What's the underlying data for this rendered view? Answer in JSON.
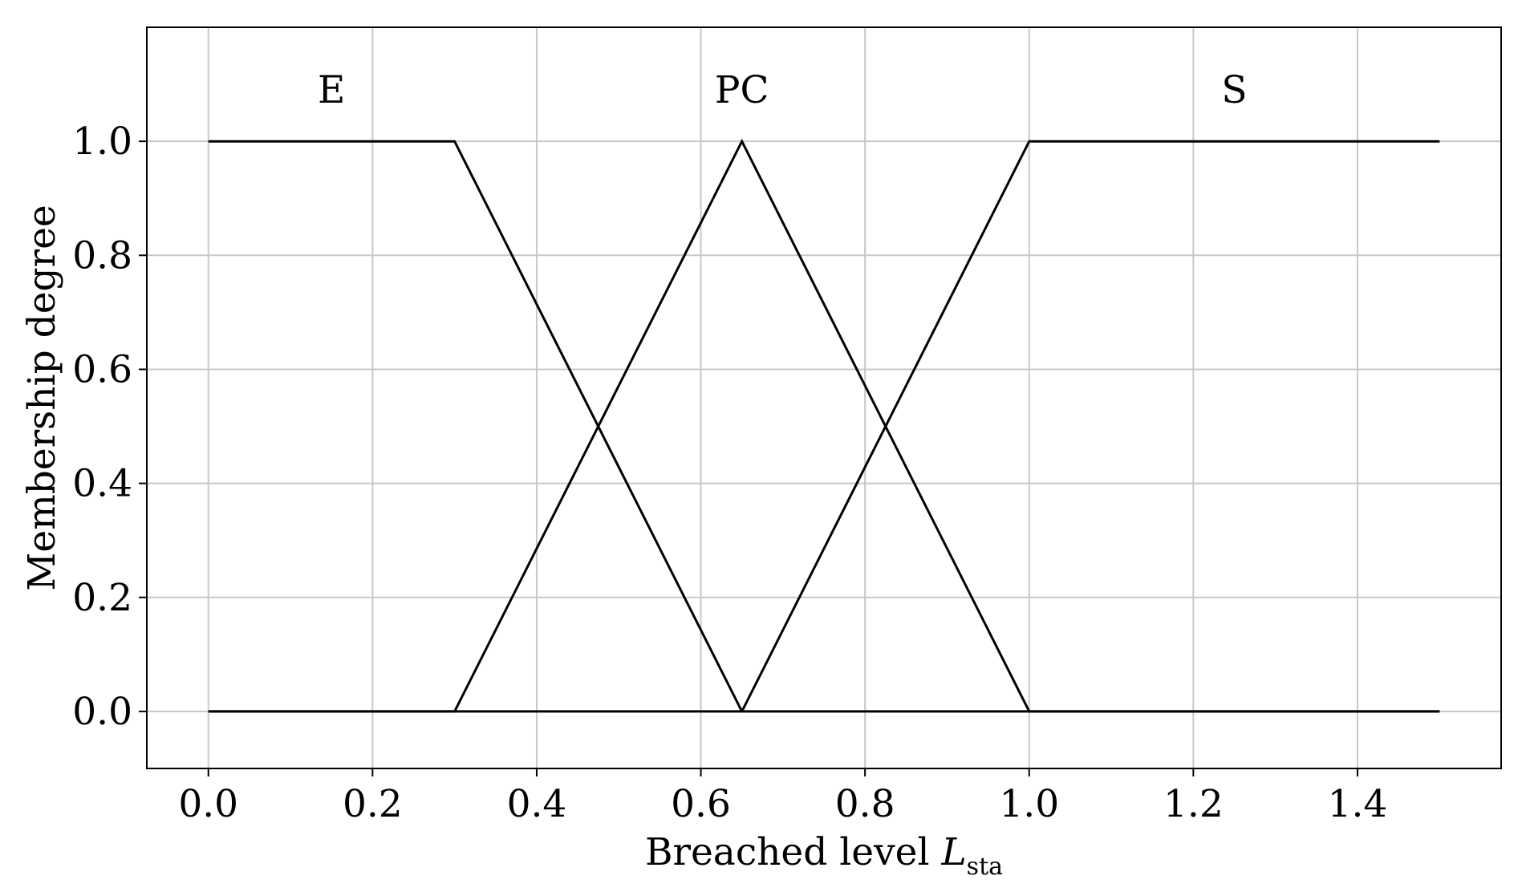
{
  "chart_data": {
    "type": "line",
    "title": "",
    "xlabel": "Breached level ",
    "xlabel_symbol": "L",
    "xlabel_subscript": "sta",
    "ylabel": "Membership degree",
    "xlim": [
      -0.075,
      1.575
    ],
    "ylim": [
      -0.1,
      1.2
    ],
    "x_ticks": [
      0.0,
      0.2,
      0.4,
      0.6,
      0.8,
      1.0,
      1.2,
      1.4
    ],
    "x_tick_labels": [
      "0.0",
      "0.2",
      "0.4",
      "0.6",
      "0.8",
      "1.0",
      "1.2",
      "1.4"
    ],
    "y_ticks": [
      0.0,
      0.2,
      0.4,
      0.6,
      0.8,
      1.0
    ],
    "y_tick_labels": [
      "0.0",
      "0.2",
      "0.4",
      "0.6",
      "0.8",
      "1.0"
    ],
    "grid": true,
    "line_color": "#000000",
    "grid_color": "#c8c8c8",
    "series": [
      {
        "name": "E",
        "label_x": 0.15,
        "label_y": 1.09,
        "x": [
          0.0,
          0.3,
          0.65,
          1.5
        ],
        "y": [
          1.0,
          1.0,
          0.0,
          0.0
        ]
      },
      {
        "name": "PC",
        "label_x": 0.65,
        "label_y": 1.09,
        "x": [
          0.0,
          0.3,
          0.65,
          1.0,
          1.5
        ],
        "y": [
          0.0,
          0.0,
          1.0,
          0.0,
          0.0
        ]
      },
      {
        "name": "S",
        "label_x": 1.25,
        "label_y": 1.09,
        "x": [
          0.0,
          0.65,
          1.0,
          1.5
        ],
        "y": [
          0.0,
          0.0,
          1.0,
          1.0
        ]
      }
    ]
  }
}
